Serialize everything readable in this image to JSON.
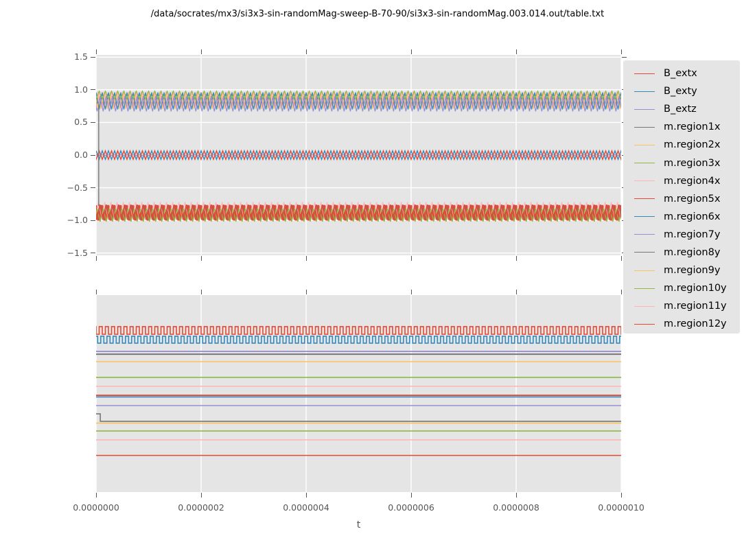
{
  "title": "/data/socrates/mx3/si3x3-sin-randomMag-sweep-B-70-90/si3x3-sin-randomMag.003.014.out/table.txt",
  "xaxis": {
    "label": "t",
    "tick_labels": [
      "0.0000000",
      "0.0000002",
      "0.0000004",
      "0.0000006",
      "0.0000008",
      "0.0000010"
    ]
  },
  "top_plot": {
    "y_tick_labels": [
      "1.5",
      "1.0",
      "0.5",
      "0.0",
      "−0.5",
      "−1.0",
      "−1.5"
    ]
  },
  "legend": {
    "entries": [
      {
        "label": "B_extx",
        "color": "#E24A33"
      },
      {
        "label": "B_exty",
        "color": "#348ABD"
      },
      {
        "label": "B_extz",
        "color": "#988ED5"
      },
      {
        "label": "m.region1x",
        "color": "#777777"
      },
      {
        "label": "m.region2x",
        "color": "#FBC15E"
      },
      {
        "label": "m.region3x",
        "color": "#8EBA42"
      },
      {
        "label": "m.region4x",
        "color": "#FFB5B8"
      },
      {
        "label": "m.region5x",
        "color": "#E24A33"
      },
      {
        "label": "m.region6x",
        "color": "#348ABD"
      },
      {
        "label": "m.region7y",
        "color": "#988ED5"
      },
      {
        "label": "m.region8y",
        "color": "#777777"
      },
      {
        "label": "m.region9y",
        "color": "#FBC15E"
      },
      {
        "label": "m.region10y",
        "color": "#8EBA42"
      },
      {
        "label": "m.region11y",
        "color": "#FFB5B8"
      },
      {
        "label": "m.region12y",
        "color": "#E24A33"
      }
    ]
  },
  "style_colors": {
    "axes_background": "#E5E5E5",
    "grid": "#FFFFFF",
    "tick_text": "#555555",
    "red": "#E24A33",
    "blue": "#348ABD",
    "purple": "#988ED5",
    "gray": "#777777",
    "orange": "#FBC15E",
    "green": "#8EBA42",
    "pink": "#FFB5B8"
  },
  "chart_data": [
    {
      "id": "top",
      "type": "line",
      "xlim": [
        0,
        1e-06
      ],
      "ylim": [
        -1.535,
        1.535
      ],
      "x_tick_values": [
        0,
        2e-07,
        4e-07,
        6e-07,
        8e-07,
        1e-06
      ],
      "y_tick_values": [
        1.5,
        1.0,
        0.5,
        0.0,
        -0.5,
        -1.0,
        -1.5
      ],
      "grid": "both",
      "n_cycles": 85,
      "note": "15 overlapping high-frequency periodic series (B_ext* and m.region*) form three oscillation bands: ~+0.85, ~0.0, ~-0.88; a gray series flips from +0.78 to -0.78 at t~0",
      "bands": [
        {
          "label": "upper band ~+0.85",
          "waves": [
            {
              "color": "#FFB5B8",
              "v_top": 0.965,
              "v_bot": 0.745,
              "w": 4.0,
              "phase": 0.55
            },
            {
              "color": "#777777",
              "v_top": 0.93,
              "v_bot": 0.74,
              "w": 1.0,
              "phase": 0.2
            },
            {
              "color": "#FBC15E",
              "v_top": 0.94,
              "v_bot": 0.71,
              "w": 1.2,
              "phase": 0.7
            },
            {
              "color": "#348ABD",
              "v_top": 0.96,
              "v_bot": 0.7,
              "w": 1.3,
              "phase": 0.0
            },
            {
              "color": "#8EBA42",
              "v_top": 0.98,
              "v_bot": 0.86,
              "w": 1.2,
              "phase": 0.5
            },
            {
              "color": "#988ED5",
              "v_top": 0.9,
              "v_bot": 0.67,
              "w": 1.3,
              "phase": 0.35
            }
          ]
        },
        {
          "label": "middle band ~0.0",
          "waves": [
            {
              "color": "#988ED5",
              "v_top": 0.004,
              "v_bot": -0.004,
              "w": 1.2,
              "phase": 0.0
            },
            {
              "color": "#348ABD",
              "v_top": 0.065,
              "v_bot": -0.065,
              "w": 1.4,
              "phase": 0.0
            },
            {
              "color": "#E24A33",
              "v_top": 0.065,
              "v_bot": -0.065,
              "w": 1.4,
              "phase": 0.5
            }
          ]
        },
        {
          "label": "lower band ~-0.88",
          "waves": [
            {
              "color": "#E24A33",
              "v_top": -0.77,
              "v_bot": -1.0,
              "w": 4.0,
              "phase": 0.1
            },
            {
              "color": "#FFB5B8",
              "v_top": -0.72,
              "v_bot": -0.95,
              "w": 1.2,
              "phase": 0.6
            },
            {
              "color": "#777777",
              "v_top": -0.76,
              "v_bot": -0.99,
              "w": 1.0,
              "phase": 0.3
            },
            {
              "color": "#8EBA42",
              "v_top": -0.82,
              "v_bot": -1.02,
              "w": 1.2,
              "phase": 0.85
            },
            {
              "color": "#E24A33",
              "v_top": -0.76,
              "v_bot": -0.99,
              "w": 1.6,
              "phase": 0.4
            }
          ]
        }
      ],
      "events": [
        {
          "desc": "gray series sign flip at t~0",
          "color": "#777777",
          "x_frac": 0.005,
          "v_from": 0.78,
          "v_to": -0.78
        },
        {
          "desc": "orange start transient",
          "color": "#FBC15E",
          "x_frac": 0.003,
          "v_from": 0.72,
          "v_to": 0.79
        }
      ]
    },
    {
      "id": "bottom",
      "type": "line",
      "xlim": [
        0,
        1e-06
      ],
      "x_tick_values": [
        0,
        2e-07,
        4e-07,
        6e-07,
        8e-07,
        1e-06
      ],
      "grid": "x-only",
      "n_cycles": 85,
      "note": "two square-wave pulse trains on top, below them eleven constant horizontal lines and one gray line stepping down near t~0; no y tick labels shown",
      "square_waves": [
        {
          "color": "#E24A33",
          "y_base_frac": 0.199,
          "y_pulse_frac": 0.16,
          "duty": 0.5,
          "phase": 0.0,
          "w": 1.6
        },
        {
          "color": "#348ABD",
          "y_base_frac": 0.209,
          "y_pulse_frac": 0.244,
          "duty": 0.5,
          "phase": 0.25,
          "w": 1.6
        }
      ],
      "flat_lines": [
        {
          "color": "#988ED5",
          "y_frac": 0.286,
          "w": 1.8
        },
        {
          "color": "#777777",
          "y_frac": 0.3,
          "w": 2.0
        },
        {
          "color": "#FBC15E",
          "y_frac": 0.338,
          "w": 1.6
        },
        {
          "color": "#8EBA42",
          "y_frac": 0.418,
          "w": 1.6
        },
        {
          "color": "#FFB5B8",
          "y_frac": 0.463,
          "w": 1.6
        },
        {
          "color": "#E24A33",
          "y_frac": 0.509,
          "w": 1.8
        },
        {
          "color": "#348ABD",
          "y_frac": 0.517,
          "w": 1.8
        },
        {
          "color": "#988ED5",
          "y_frac": 0.561,
          "w": 1.6
        },
        {
          "color": "#FBC15E",
          "y_frac": 0.65,
          "w": 1.6
        },
        {
          "color": "#8EBA42",
          "y_frac": 0.69,
          "w": 1.6
        },
        {
          "color": "#FFB5B8",
          "y_frac": 0.735,
          "w": 1.6
        },
        {
          "color": "#E24A33",
          "y_frac": 0.814,
          "w": 1.6
        }
      ],
      "step_lines": [
        {
          "color": "#777777",
          "y_start_frac": 0.603,
          "y_end_frac": 0.641,
          "step_x_frac": 0.008,
          "w": 1.6
        }
      ]
    }
  ]
}
